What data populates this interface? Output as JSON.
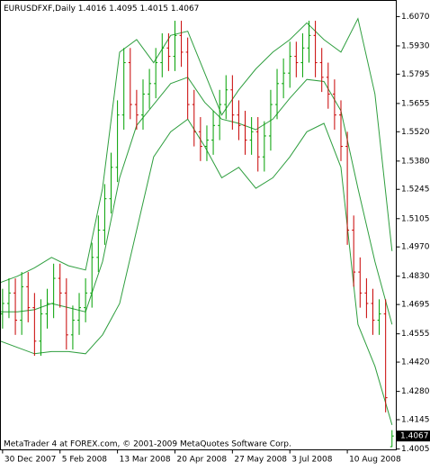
{
  "chart_data": {
    "type": "ohlc",
    "symbol": "EURUSDFXF,Daily",
    "footer": "MetaTrader 4 at FOREX.com, © 2001-2009 MetaQuotes Software Corp.",
    "xlim": [
      0,
      186
    ],
    "xticks": [
      {
        "value": 1,
        "label": "30 Dec 2007"
      },
      {
        "value": 28,
        "label": "5 Feb 2008"
      },
      {
        "value": 55,
        "label": "13 Mar 2008"
      },
      {
        "value": 82,
        "label": "20 Apr 2008"
      },
      {
        "value": 109,
        "label": "27 May 2008"
      },
      {
        "value": 136,
        "label": "3 Jul 2008"
      },
      {
        "value": 163,
        "label": "10 Aug 2008"
      }
    ],
    "ylim": [
      1.4001,
      1.6147
    ],
    "yticks": [
      {
        "value": 1.607,
        "label": "1.6070"
      },
      {
        "value": 1.593,
        "label": "1.5930"
      },
      1.5795,
      1.5655,
      {
        "value": 1.552,
        "label": "1.5520"
      },
      {
        "value": 1.538,
        "label": "1.5380"
      },
      1.5245,
      1.5105,
      {
        "value": 1.497,
        "label": "1.4970"
      },
      {
        "value": 1.483,
        "label": "1.4830"
      },
      1.4695,
      1.4555,
      {
        "value": 1.442,
        "label": "1.4420"
      },
      {
        "value": 1.428,
        "label": "1.4280"
      },
      1.4145,
      1.4005
    ],
    "up_color": "#00a000",
    "down_color": "#c80000",
    "x": [
      1,
      4,
      7,
      10,
      13,
      16,
      19,
      22,
      25,
      28,
      31,
      34,
      37,
      40,
      43,
      46,
      49,
      52,
      55,
      58,
      61,
      64,
      67,
      70,
      73,
      76,
      79,
      82,
      85,
      88,
      91,
      94,
      97,
      100,
      103,
      106,
      109,
      112,
      115,
      118,
      121,
      124,
      127,
      130,
      133,
      136,
      139,
      142,
      145,
      148,
      151,
      154,
      157,
      160,
      163,
      166,
      169,
      172,
      175,
      178,
      181,
      184
    ],
    "open": [
      1.465,
      1.47,
      1.475,
      1.462,
      1.478,
      1.468,
      1.452,
      1.465,
      1.47,
      1.482,
      1.475,
      1.455,
      1.462,
      1.468,
      1.475,
      1.492,
      1.505,
      1.52,
      1.535,
      1.56,
      1.585,
      1.565,
      1.56,
      1.57,
      1.575,
      1.585,
      1.592,
      1.588,
      1.598,
      1.59,
      1.565,
      1.552,
      1.545,
      1.548,
      1.555,
      1.565,
      1.572,
      1.56,
      1.555,
      1.548,
      1.552,
      1.54,
      1.55,
      1.565,
      1.575,
      1.58,
      1.588,
      1.585,
      1.592,
      1.598,
      1.585,
      1.578,
      1.57,
      1.56,
      1.545,
      1.505,
      1.485,
      1.475,
      1.47,
      1.462,
      1.465,
      1.4016
    ],
    "high": [
      1.477,
      1.482,
      1.482,
      1.485,
      1.485,
      1.475,
      1.472,
      1.477,
      1.489,
      1.489,
      1.482,
      1.469,
      1.475,
      1.482,
      1.499,
      1.512,
      1.527,
      1.542,
      1.567,
      1.592,
      1.592,
      1.572,
      1.577,
      1.582,
      1.592,
      1.599,
      1.599,
      1.605,
      1.605,
      1.597,
      1.572,
      1.559,
      1.555,
      1.562,
      1.572,
      1.579,
      1.579,
      1.567,
      1.562,
      1.559,
      1.559,
      1.557,
      1.572,
      1.582,
      1.587,
      1.595,
      1.595,
      1.599,
      1.605,
      1.605,
      1.592,
      1.585,
      1.577,
      1.567,
      1.552,
      1.512,
      1.492,
      1.482,
      1.477,
      1.472,
      1.472,
      1.4095
    ],
    "low": [
      1.458,
      1.463,
      1.455,
      1.455,
      1.461,
      1.445,
      1.445,
      1.458,
      1.463,
      1.468,
      1.448,
      1.448,
      1.455,
      1.461,
      1.468,
      1.485,
      1.498,
      1.513,
      1.528,
      1.553,
      1.558,
      1.553,
      1.553,
      1.563,
      1.568,
      1.578,
      1.581,
      1.581,
      1.583,
      1.558,
      1.545,
      1.538,
      1.538,
      1.541,
      1.548,
      1.558,
      1.553,
      1.548,
      1.541,
      1.541,
      1.533,
      1.533,
      1.543,
      1.558,
      1.568,
      1.573,
      1.578,
      1.578,
      1.585,
      1.578,
      1.571,
      1.563,
      1.553,
      1.538,
      1.498,
      1.478,
      1.468,
      1.463,
      1.455,
      1.455,
      1.418,
      1.4015
    ],
    "close": [
      1.47,
      1.475,
      1.462,
      1.478,
      1.468,
      1.452,
      1.465,
      1.47,
      1.482,
      1.475,
      1.455,
      1.462,
      1.468,
      1.475,
      1.492,
      1.505,
      1.52,
      1.535,
      1.56,
      1.585,
      1.565,
      1.56,
      1.57,
      1.575,
      1.585,
      1.592,
      1.588,
      1.598,
      1.59,
      1.565,
      1.552,
      1.545,
      1.548,
      1.555,
      1.565,
      1.572,
      1.56,
      1.555,
      1.548,
      1.552,
      1.54,
      1.55,
      1.565,
      1.575,
      1.58,
      1.588,
      1.585,
      1.592,
      1.598,
      1.585,
      1.578,
      1.57,
      1.56,
      1.545,
      1.505,
      1.485,
      1.475,
      1.47,
      1.462,
      1.465,
      1.425,
      1.4067
    ],
    "bands": {
      "color": "#2e9e3e",
      "x": [
        0,
        8,
        16,
        24,
        32,
        40,
        48,
        56,
        64,
        72,
        80,
        88,
        96,
        104,
        112,
        120,
        128,
        136,
        144,
        152,
        160,
        168,
        176,
        184
      ],
      "upper": [
        1.48,
        1.483,
        1.487,
        1.492,
        1.488,
        1.486,
        1.525,
        1.59,
        1.596,
        1.585,
        1.598,
        1.6,
        1.58,
        1.56,
        1.572,
        1.582,
        1.59,
        1.596,
        1.604,
        1.596,
        1.59,
        1.606,
        1.57,
        1.495
      ],
      "middle": [
        1.466,
        1.466,
        1.467,
        1.47,
        1.468,
        1.466,
        1.49,
        1.53,
        1.555,
        1.565,
        1.575,
        1.578,
        1.566,
        1.558,
        1.556,
        1.553,
        1.558,
        1.568,
        1.577,
        1.576,
        1.562,
        1.525,
        1.49,
        1.46
      ],
      "lower": [
        1.452,
        1.449,
        1.446,
        1.447,
        1.447,
        1.446,
        1.455,
        1.47,
        1.505,
        1.54,
        1.552,
        1.558,
        1.545,
        1.53,
        1.535,
        1.525,
        1.53,
        1.54,
        1.552,
        1.556,
        1.535,
        1.46,
        1.44,
        1.412
      ]
    }
  }
}
